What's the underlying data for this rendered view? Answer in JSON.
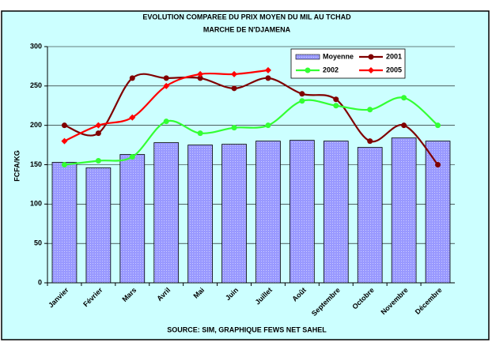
{
  "chart_data": {
    "type": "bar_line",
    "title": "EVOLUTION COMPAREE DU PRIX MOYEN DU MIL AU TCHAD",
    "subtitle": "MARCHE DE N'DJAMENA",
    "y_label": "FCFA/KG",
    "source": "SOURCE: SIM, GRAPHIQUE FEWS NET SAHEL",
    "categories": [
      "Janvier",
      "Février",
      "Mars",
      "Avril",
      "Mai",
      "Juin",
      "Juillet",
      "Août",
      "Septembre",
      "Octobre",
      "Novembre",
      "Décembre"
    ],
    "series": [
      {
        "name": "Moyenne",
        "kind": "bar",
        "color": "#9999ff",
        "values": [
          153,
          146,
          163,
          178,
          175,
          176,
          180,
          181,
          180,
          172,
          184,
          180
        ]
      },
      {
        "name": "2001",
        "kind": "line",
        "marker": "circle",
        "color": "#800000",
        "values": [
          200,
          190,
          260,
          260,
          260,
          247,
          260,
          240,
          233,
          180,
          200,
          150
        ]
      },
      {
        "name": "2002",
        "kind": "line",
        "marker": "circle",
        "color": "#33ff33",
        "values": [
          150,
          155,
          160,
          205,
          190,
          197,
          200,
          231,
          225,
          220,
          235,
          200
        ]
      },
      {
        "name": "2005",
        "kind": "line",
        "marker": "diamond",
        "color": "#ff0000",
        "values": [
          180,
          200,
          210,
          250,
          265,
          265,
          270,
          null,
          null,
          null,
          null,
          null
        ]
      }
    ],
    "ylim": [
      0,
      300
    ],
    "yticks": [
      0,
      50,
      100,
      150,
      200,
      250,
      300
    ],
    "grid": true,
    "legend": "top-right"
  }
}
